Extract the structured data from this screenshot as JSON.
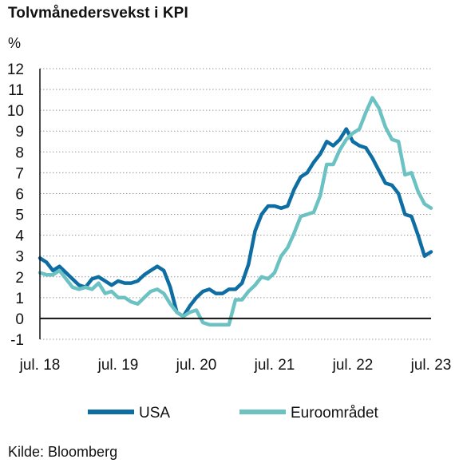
{
  "title": "Tolvmånedersvekst i KPI",
  "source": "Kilde: Bloomberg",
  "chart_data": {
    "type": "line",
    "title": "Tolvmånedersvekst i KPI",
    "ylabel": "%",
    "xlabel": "",
    "ylim": [
      -1,
      12
    ],
    "yticks": [
      -1,
      0,
      1,
      2,
      3,
      4,
      5,
      6,
      7,
      8,
      9,
      10,
      11,
      12
    ],
    "xrange": [
      "2018-07",
      "2023-07"
    ],
    "xticks": [
      {
        "label": "jul. 18",
        "date": "2018-07"
      },
      {
        "label": "jul. 19",
        "date": "2019-07"
      },
      {
        "label": "jul. 20",
        "date": "2020-07"
      },
      {
        "label": "jul. 21",
        "date": "2021-07"
      },
      {
        "label": "jul. 22",
        "date": "2022-07"
      },
      {
        "label": "jul. 23",
        "date": "2023-07"
      }
    ],
    "grid": {
      "horizontal": true,
      "style": "dotted"
    },
    "legend": "bottom",
    "series": [
      {
        "name": "USA",
        "color": "#0e6ea3",
        "x": [
          "2018-07",
          "2018-08",
          "2018-09",
          "2018-10",
          "2018-11",
          "2018-12",
          "2019-01",
          "2019-02",
          "2019-03",
          "2019-04",
          "2019-05",
          "2019-06",
          "2019-07",
          "2019-08",
          "2019-09",
          "2019-10",
          "2019-11",
          "2019-12",
          "2020-01",
          "2020-02",
          "2020-03",
          "2020-04",
          "2020-05",
          "2020-06",
          "2020-07",
          "2020-08",
          "2020-09",
          "2020-10",
          "2020-11",
          "2020-12",
          "2021-01",
          "2021-02",
          "2021-03",
          "2021-04",
          "2021-05",
          "2021-06",
          "2021-07",
          "2021-08",
          "2021-09",
          "2021-10",
          "2021-11",
          "2021-12",
          "2022-01",
          "2022-02",
          "2022-03",
          "2022-04",
          "2022-05",
          "2022-06",
          "2022-07",
          "2022-08",
          "2022-09",
          "2022-10",
          "2022-11",
          "2022-12",
          "2023-01",
          "2023-02",
          "2023-03",
          "2023-04",
          "2023-05",
          "2023-06",
          "2023-07"
        ],
        "values": [
          2.9,
          2.7,
          2.3,
          2.5,
          2.2,
          1.9,
          1.6,
          1.5,
          1.9,
          2.0,
          1.8,
          1.6,
          1.8,
          1.7,
          1.7,
          1.8,
          2.1,
          2.3,
          2.5,
          2.3,
          1.5,
          0.3,
          0.1,
          0.6,
          1.0,
          1.3,
          1.4,
          1.2,
          1.2,
          1.4,
          1.4,
          1.7,
          2.6,
          4.2,
          5.0,
          5.4,
          5.4,
          5.3,
          5.4,
          6.2,
          6.8,
          7.0,
          7.5,
          7.9,
          8.5,
          8.3,
          8.6,
          9.1,
          8.5,
          8.3,
          8.2,
          7.7,
          7.1,
          6.5,
          6.4,
          6.0,
          5.0,
          4.9,
          4.0,
          3.0,
          3.2
        ]
      },
      {
        "name": "Euroområdet",
        "color": "#6cc2c3",
        "x": [
          "2018-07",
          "2018-08",
          "2018-09",
          "2018-10",
          "2018-11",
          "2018-12",
          "2019-01",
          "2019-02",
          "2019-03",
          "2019-04",
          "2019-05",
          "2019-06",
          "2019-07",
          "2019-08",
          "2019-09",
          "2019-10",
          "2019-11",
          "2019-12",
          "2020-01",
          "2020-02",
          "2020-03",
          "2020-04",
          "2020-05",
          "2020-06",
          "2020-07",
          "2020-08",
          "2020-09",
          "2020-10",
          "2020-11",
          "2020-12",
          "2021-01",
          "2021-02",
          "2021-03",
          "2021-04",
          "2021-05",
          "2021-06",
          "2021-07",
          "2021-08",
          "2021-09",
          "2021-10",
          "2021-11",
          "2021-12",
          "2022-01",
          "2022-02",
          "2022-03",
          "2022-04",
          "2022-05",
          "2022-06",
          "2022-07",
          "2022-08",
          "2022-09",
          "2022-10",
          "2022-11",
          "2022-12",
          "2023-01",
          "2023-02",
          "2023-03",
          "2023-04",
          "2023-05",
          "2023-06",
          "2023-07"
        ],
        "values": [
          2.2,
          2.1,
          2.1,
          2.3,
          1.9,
          1.5,
          1.4,
          1.5,
          1.4,
          1.7,
          1.2,
          1.3,
          1.0,
          1.0,
          0.8,
          0.7,
          1.0,
          1.3,
          1.4,
          1.2,
          0.7,
          0.3,
          0.1,
          0.3,
          0.4,
          -0.2,
          -0.3,
          -0.3,
          -0.3,
          -0.3,
          0.9,
          0.9,
          1.3,
          1.6,
          2.0,
          1.9,
          2.2,
          3.0,
          3.4,
          4.1,
          4.9,
          5.0,
          5.1,
          5.9,
          7.4,
          7.4,
          8.1,
          8.6,
          8.9,
          9.1,
          9.9,
          10.6,
          10.1,
          9.2,
          8.6,
          8.5,
          6.9,
          7.0,
          6.1,
          5.5,
          5.3
        ]
      }
    ]
  }
}
